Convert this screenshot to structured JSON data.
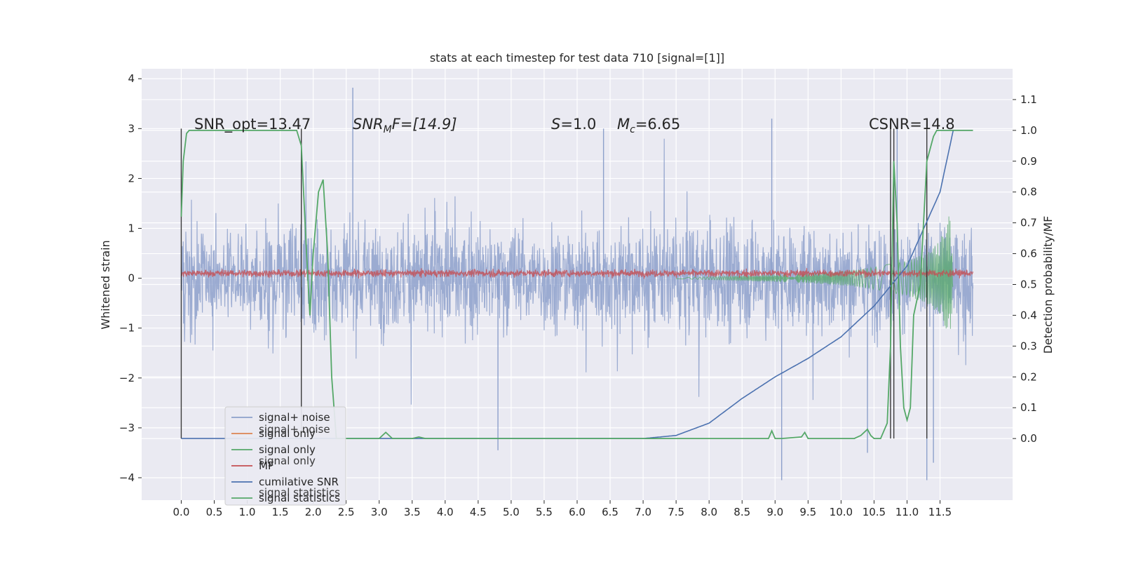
{
  "chart_data": {
    "type": "line",
    "title": "stats at each timestep for test data 710 [signal=[1]]",
    "xlabel": "",
    "ylabel": "Whitened strain",
    "ylabel_right": "Detection probability/MF",
    "xlim": [
      -0.6,
      12.6
    ],
    "ylim": [
      -4.45,
      4.2
    ],
    "ylim_right": [
      -0.2,
      1.2
    ],
    "x_ticks": [
      "0.0",
      "0.5",
      "1.0",
      "1.5",
      "2.0",
      "2.5",
      "3.0",
      "3.5",
      "4.0",
      "4.5",
      "5.0",
      "5.5",
      "6.0",
      "6.5",
      "7.0",
      "7.5",
      "8.0",
      "8.5",
      "9.0",
      "9.5",
      "10.0",
      "10.5",
      "11.0",
      "11.5"
    ],
    "y_ticks": [
      "4",
      "3",
      "2",
      "1",
      "0",
      "−1",
      "−2",
      "−3",
      "−4"
    ],
    "y_ticks_right": [
      "1.1",
      "1.0",
      "0.9",
      "0.8",
      "0.7",
      "0.6",
      "0.5",
      "0.4",
      "0.3",
      "0.2",
      "0.1",
      "0.0"
    ],
    "annotations": {
      "snr_opt": "SNR_opt=13.47",
      "snr_mf_main": "SNR",
      "snr_mf_sub": "M",
      "snr_mf_rest": "F=[14.9]",
      "s_main": "S",
      "s_rest": "=1.0",
      "mc_main": "M",
      "mc_sub": "c",
      "mc_rest": "=6.65",
      "csnr": "CSNR=14.8"
    },
    "grid": true,
    "legend_position": "lower-left",
    "legend": [
      {
        "label": "signal+ noise",
        "color": "#8da0cb"
      },
      {
        "label": "signal only",
        "color": "#dd8452"
      },
      {
        "label": "signal only",
        "color": "#55a868"
      },
      {
        "label": "MF",
        "color": "#c44e52"
      },
      {
        "label": "cumilative SNR",
        "color": "#4c72b0"
      },
      {
        "label": "signal statistics",
        "color": "#55a868"
      }
    ],
    "legend_overlap_text": [
      "signal+ noise",
      "signal only",
      "signal statistics"
    ],
    "series": [
      {
        "name": "signal+ noise",
        "axis": "left",
        "description": "whitened strain noise, approx amplitude +/-1.2 with spikes to +/-3.8, from x=0 to x=12",
        "envelope": [
          1.2,
          -1.2
        ],
        "spikes": [
          [
            2.6,
            3.82
          ],
          [
            4.8,
            -3.45
          ],
          [
            9.1,
            -4.05
          ],
          [
            11.3,
            -4.05
          ],
          [
            11.4,
            -3.7
          ],
          [
            8.95,
            3.2
          ],
          [
            10.85,
            3.1
          ],
          [
            6.4,
            3.0
          ],
          [
            10.4,
            -3.5
          ]
        ]
      },
      {
        "name": "MF",
        "axis": "left",
        "description": "small amplitude red trace around 0.1",
        "envelope": [
          0.25,
          -0.02
        ]
      },
      {
        "name": "signal only",
        "axis": "left",
        "description": "chirp signal growing from x=7.5 to x=11.7",
        "x": [
          7.5,
          8.5,
          9.5,
          10.0,
          10.5,
          11.0,
          11.3,
          11.5,
          11.65,
          11.7
        ],
        "amplitude": [
          0.01,
          0.05,
          0.1,
          0.14,
          0.22,
          0.35,
          0.5,
          0.75,
          1.3,
          0.2
        ]
      },
      {
        "name": "cumilative SNR",
        "axis": "right",
        "x": [
          0.0,
          7.0,
          7.5,
          8.0,
          8.5,
          9.0,
          9.5,
          10.0,
          10.5,
          11.0,
          11.5,
          11.7
        ],
        "y": [
          0.0,
          0.0,
          0.01,
          0.05,
          0.13,
          0.2,
          0.26,
          0.33,
          0.43,
          0.56,
          0.8,
          1.0
        ]
      },
      {
        "name": "signal statistics",
        "axis": "right",
        "x": [
          0.0,
          0.03,
          0.08,
          0.12,
          0.2,
          1.6,
          1.75,
          1.82,
          1.9,
          1.95,
          2.0,
          2.08,
          2.15,
          2.22,
          2.28,
          2.35,
          2.4,
          2.5,
          3.0,
          3.1,
          3.2,
          3.5,
          3.6,
          3.7,
          4.0,
          8.9,
          8.95,
          9.0,
          9.1,
          9.4,
          9.45,
          9.5,
          9.6,
          10.2,
          10.3,
          10.4,
          10.45,
          10.5,
          10.6,
          10.7,
          10.75,
          10.8,
          10.85,
          10.9,
          10.95,
          11.0,
          11.05,
          11.1,
          11.2,
          11.3,
          11.4,
          11.45,
          11.5,
          11.6,
          11.7,
          12.0
        ],
        "y": [
          0.72,
          0.9,
          0.99,
          1.0,
          1.0,
          1.0,
          1.0,
          0.95,
          0.6,
          0.4,
          0.6,
          0.8,
          0.84,
          0.6,
          0.2,
          0.0,
          0.0,
          0.0,
          0.0,
          0.02,
          0.0,
          0.0,
          0.005,
          0.0,
          0.0,
          0.0,
          0.025,
          0.0,
          0.0,
          0.005,
          0.02,
          0.0,
          0.0,
          0.0,
          0.01,
          0.03,
          0.01,
          0.0,
          0.0,
          0.05,
          0.3,
          0.9,
          0.7,
          0.3,
          0.1,
          0.06,
          0.1,
          0.4,
          0.5,
          0.9,
          0.98,
          1.0,
          1.0,
          1.0,
          1.0,
          1.0
        ]
      }
    ],
    "vertical_lines_x": [
      0.0,
      1.82,
      10.75,
      10.8,
      11.3
    ]
  }
}
